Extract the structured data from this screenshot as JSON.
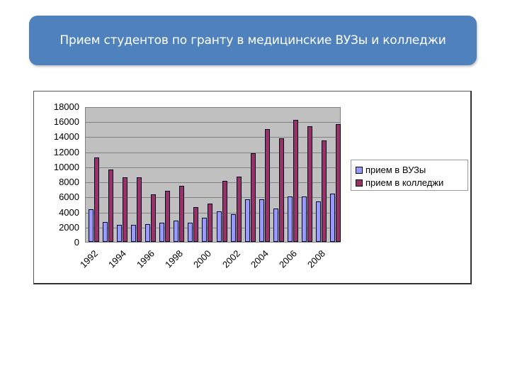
{
  "header": {
    "title": "Прием студентов по гранту в медицинские ВУЗы и колледжи"
  },
  "chart_data": {
    "type": "bar",
    "title": "Прием студентов по гранту в медицинские ВУЗы и колледжи",
    "xlabel": "",
    "ylabel": "",
    "ylim": [
      0,
      18000
    ],
    "yticks": [
      0,
      2000,
      4000,
      6000,
      8000,
      10000,
      12000,
      14000,
      16000,
      18000
    ],
    "categories": [
      "1992",
      "1993",
      "1994",
      "1995",
      "1996",
      "1997",
      "1998",
      "1999",
      "2000",
      "2001",
      "2002",
      "2003",
      "2004",
      "2005",
      "2006",
      "2007",
      "2008",
      "2009"
    ],
    "xtick_labels": [
      "1992",
      "1994",
      "1996",
      "1998",
      "2000",
      "2002",
      "2004",
      "2006",
      "2008"
    ],
    "series": [
      {
        "name": "прием в ВУЗы",
        "color": "#9999ff",
        "values": [
          4300,
          2600,
          2300,
          2300,
          2400,
          2500,
          2800,
          2500,
          3200,
          4100,
          3700,
          5700,
          5700,
          4400,
          6000,
          6000,
          5400,
          6400
        ]
      },
      {
        "name": "прием в колледжи",
        "color": "#993366",
        "values": [
          11200,
          9600,
          8600,
          8600,
          6300,
          6800,
          7400,
          4600,
          5100,
          8100,
          8700,
          11800,
          15000,
          13800,
          16200,
          15400,
          13500,
          15600
        ]
      }
    ],
    "grid": true,
    "legend_position": "right",
    "plot_background": "#c0c0c0"
  },
  "legend": {
    "items": [
      {
        "label": "прием в ВУЗы",
        "color": "#9999ff"
      },
      {
        "label": "прием в колледжи",
        "color": "#993366"
      }
    ]
  }
}
